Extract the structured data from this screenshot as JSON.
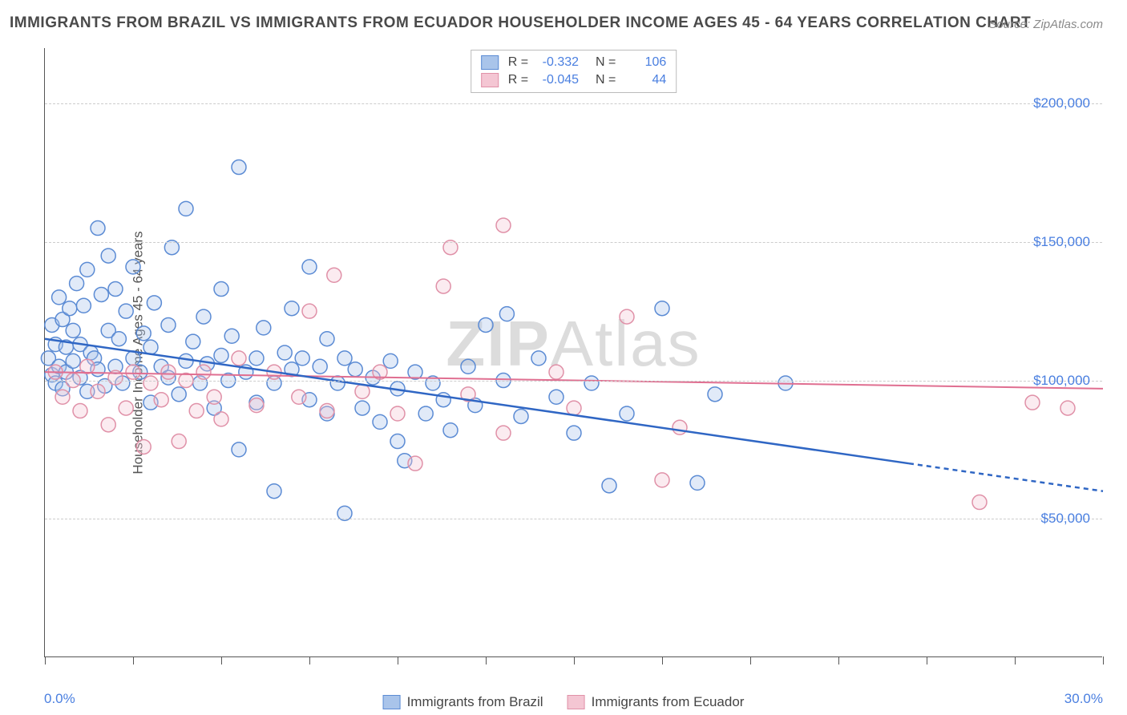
{
  "title": "IMMIGRANTS FROM BRAZIL VS IMMIGRANTS FROM ECUADOR HOUSEHOLDER INCOME AGES 45 - 64 YEARS CORRELATION CHART",
  "source": "Source: ZipAtlas.com",
  "watermark": {
    "bold": "ZIP",
    "light": "Atlas"
  },
  "chart": {
    "type": "scatter",
    "background_color": "#ffffff",
    "grid_color": "#cccccc",
    "axis_color": "#555555",
    "tick_label_color": "#4a7fe0",
    "ylabel": "Householder Income Ages 45 - 64 years",
    "ylabel_fontsize": 17,
    "xlim": [
      0,
      30
    ],
    "ylim": [
      0,
      220000
    ],
    "yticks": [
      {
        "value": 50000,
        "label": "$50,000"
      },
      {
        "value": 100000,
        "label": "$100,000"
      },
      {
        "value": 150000,
        "label": "$150,000"
      },
      {
        "value": 200000,
        "label": "$200,000"
      }
    ],
    "xtick_positions": [
      0,
      2.5,
      5,
      7.5,
      10,
      12.5,
      15,
      17.5,
      20,
      22.5,
      25,
      27.5,
      30
    ],
    "xlim_labels": {
      "min": "0.0%",
      "max": "30.0%"
    },
    "marker_radius": 9,
    "marker_stroke_width": 1.5,
    "marker_fill_opacity": 0.35,
    "series": [
      {
        "name": "Immigrants from Brazil",
        "color_stroke": "#5b8bd4",
        "color_fill": "#a9c4ea",
        "R": "-0.332",
        "N": "106",
        "regression": {
          "solid": {
            "x1": 0,
            "y1": 115000,
            "x2": 24.5,
            "y2": 70000
          },
          "dashed_extension": {
            "x1": 24.5,
            "y1": 70000,
            "x2": 30,
            "y2": 60000
          },
          "line_color": "#2f66c4",
          "line_width": 2.5
        },
        "points": [
          [
            0.1,
            108000
          ],
          [
            0.2,
            120000
          ],
          [
            0.2,
            102000
          ],
          [
            0.3,
            99000
          ],
          [
            0.3,
            113000
          ],
          [
            0.4,
            130000
          ],
          [
            0.4,
            105000
          ],
          [
            0.5,
            122000
          ],
          [
            0.5,
            97000
          ],
          [
            0.6,
            112000
          ],
          [
            0.6,
            103000
          ],
          [
            0.7,
            126000
          ],
          [
            0.8,
            118000
          ],
          [
            0.8,
            107000
          ],
          [
            0.9,
            135000
          ],
          [
            1.0,
            101000
          ],
          [
            1.0,
            113000
          ],
          [
            1.1,
            127000
          ],
          [
            1.2,
            96000
          ],
          [
            1.2,
            140000
          ],
          [
            1.3,
            110000
          ],
          [
            1.4,
            108000
          ],
          [
            1.5,
            155000
          ],
          [
            1.5,
            104000
          ],
          [
            1.6,
            131000
          ],
          [
            1.7,
            98000
          ],
          [
            1.8,
            118000
          ],
          [
            1.8,
            145000
          ],
          [
            2.0,
            105000
          ],
          [
            2.0,
            133000
          ],
          [
            2.1,
            115000
          ],
          [
            2.2,
            99000
          ],
          [
            2.3,
            125000
          ],
          [
            2.5,
            108000
          ],
          [
            2.5,
            141000
          ],
          [
            2.7,
            103000
          ],
          [
            2.8,
            117000
          ],
          [
            3.0,
            92000
          ],
          [
            3.0,
            112000
          ],
          [
            3.1,
            128000
          ],
          [
            3.3,
            105000
          ],
          [
            3.5,
            101000
          ],
          [
            3.5,
            120000
          ],
          [
            3.6,
            148000
          ],
          [
            3.8,
            95000
          ],
          [
            4.0,
            107000
          ],
          [
            4.0,
            162000
          ],
          [
            4.2,
            114000
          ],
          [
            4.4,
            99000
          ],
          [
            4.5,
            123000
          ],
          [
            4.6,
            106000
          ],
          [
            4.8,
            90000
          ],
          [
            5.0,
            109000
          ],
          [
            5.0,
            133000
          ],
          [
            5.2,
            100000
          ],
          [
            5.3,
            116000
          ],
          [
            5.5,
            177000
          ],
          [
            5.5,
            75000
          ],
          [
            5.7,
            103000
          ],
          [
            6.0,
            108000
          ],
          [
            6.0,
            92000
          ],
          [
            6.2,
            119000
          ],
          [
            6.5,
            99000
          ],
          [
            6.5,
            60000
          ],
          [
            6.8,
            110000
          ],
          [
            7.0,
            104000
          ],
          [
            7.0,
            126000
          ],
          [
            7.3,
            108000
          ],
          [
            7.5,
            93000
          ],
          [
            7.5,
            141000
          ],
          [
            7.8,
            105000
          ],
          [
            8.0,
            88000
          ],
          [
            8.0,
            115000
          ],
          [
            8.3,
            99000
          ],
          [
            8.5,
            52000
          ],
          [
            8.5,
            108000
          ],
          [
            8.8,
            104000
          ],
          [
            9.0,
            90000
          ],
          [
            9.3,
            101000
          ],
          [
            9.5,
            85000
          ],
          [
            9.8,
            107000
          ],
          [
            10.0,
            78000
          ],
          [
            10.0,
            97000
          ],
          [
            10.2,
            71000
          ],
          [
            10.5,
            103000
          ],
          [
            10.8,
            88000
          ],
          [
            11.0,
            99000
          ],
          [
            11.3,
            93000
          ],
          [
            11.5,
            82000
          ],
          [
            12.0,
            105000
          ],
          [
            12.2,
            91000
          ],
          [
            12.5,
            120000
          ],
          [
            13.0,
            100000
          ],
          [
            13.1,
            124000
          ],
          [
            13.5,
            87000
          ],
          [
            14.0,
            108000
          ],
          [
            14.5,
            94000
          ],
          [
            15.0,
            81000
          ],
          [
            15.5,
            99000
          ],
          [
            16.0,
            62000
          ],
          [
            16.5,
            88000
          ],
          [
            17.5,
            126000
          ],
          [
            18.5,
            63000
          ],
          [
            19.0,
            95000
          ],
          [
            21.0,
            99000
          ]
        ]
      },
      {
        "name": "Immigrants from Ecuador",
        "color_stroke": "#e091a8",
        "color_fill": "#f4c6d3",
        "R": "-0.045",
        "N": "44",
        "regression": {
          "solid": {
            "x1": 0,
            "y1": 103000,
            "x2": 30,
            "y2": 97000
          },
          "line_color": "#e06f91",
          "line_width": 2
        },
        "points": [
          [
            0.3,
            103000
          ],
          [
            0.5,
            94000
          ],
          [
            0.8,
            100000
          ],
          [
            1.0,
            89000
          ],
          [
            1.2,
            105000
          ],
          [
            1.5,
            96000
          ],
          [
            1.8,
            84000
          ],
          [
            2.0,
            101000
          ],
          [
            2.3,
            90000
          ],
          [
            2.5,
            103000
          ],
          [
            2.8,
            76000
          ],
          [
            3.0,
            99000
          ],
          [
            3.3,
            93000
          ],
          [
            3.5,
            103000
          ],
          [
            3.8,
            78000
          ],
          [
            4.0,
            100000
          ],
          [
            4.3,
            89000
          ],
          [
            4.5,
            103000
          ],
          [
            4.8,
            94000
          ],
          [
            5.0,
            86000
          ],
          [
            5.5,
            108000
          ],
          [
            6.0,
            91000
          ],
          [
            6.5,
            103000
          ],
          [
            7.2,
            94000
          ],
          [
            7.5,
            125000
          ],
          [
            8.0,
            89000
          ],
          [
            8.2,
            138000
          ],
          [
            9.0,
            96000
          ],
          [
            9.5,
            103000
          ],
          [
            10.0,
            88000
          ],
          [
            10.5,
            70000
          ],
          [
            11.3,
            134000
          ],
          [
            11.5,
            148000
          ],
          [
            12.0,
            95000
          ],
          [
            13.0,
            156000
          ],
          [
            13.0,
            81000
          ],
          [
            14.5,
            103000
          ],
          [
            15.0,
            90000
          ],
          [
            16.5,
            123000
          ],
          [
            17.5,
            64000
          ],
          [
            18.0,
            83000
          ],
          [
            26.5,
            56000
          ],
          [
            28.0,
            92000
          ],
          [
            29.0,
            90000
          ]
        ]
      }
    ]
  },
  "bottom_legend": [
    {
      "label": "Immigrants from Brazil",
      "fill": "#a9c4ea",
      "stroke": "#5b8bd4"
    },
    {
      "label": "Immigrants from Ecuador",
      "fill": "#f4c6d3",
      "stroke": "#e091a8"
    }
  ]
}
